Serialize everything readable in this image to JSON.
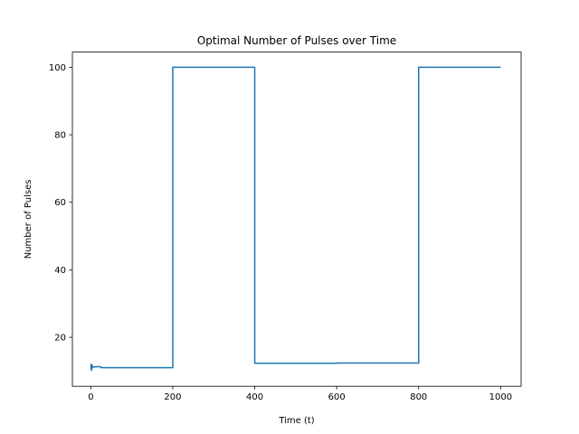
{
  "chart_data": {
    "type": "line",
    "title": "Optimal Number of Pulses over Time",
    "xlabel": "Time (t)",
    "ylabel": "Number of Pulses",
    "xlim": [
      -45,
      1050
    ],
    "ylim": [
      5.5,
      104.5
    ],
    "xticks": [
      0,
      200,
      400,
      600,
      800,
      1000
    ],
    "yticks": [
      20,
      40,
      60,
      80,
      100
    ],
    "grid": false,
    "color": "#1f77b4",
    "series": [
      {
        "x": [
          0,
          1,
          2,
          3,
          4,
          5,
          6,
          8,
          10,
          15,
          20,
          25,
          25,
          30,
          50,
          100,
          150,
          199,
          200,
          200,
          250,
          300,
          350,
          399,
          400,
          400,
          450,
          500,
          550,
          600,
          600,
          650,
          700,
          750,
          799,
          800,
          800,
          850,
          900,
          950,
          1000
        ],
        "y": [
          10.5,
          12,
          10.2,
          11.8,
          11.1,
          11.3,
          11.2,
          11.3,
          11.2,
          11.3,
          11.3,
          11.2,
          11.0,
          11.0,
          11.0,
          11.0,
          11.0,
          11.0,
          11.0,
          100,
          100,
          100,
          100,
          100,
          100,
          12.3,
          12.3,
          12.3,
          12.3,
          12.3,
          12.4,
          12.4,
          12.4,
          12.4,
          12.4,
          12.4,
          100,
          100,
          100,
          100,
          100
        ]
      }
    ]
  }
}
